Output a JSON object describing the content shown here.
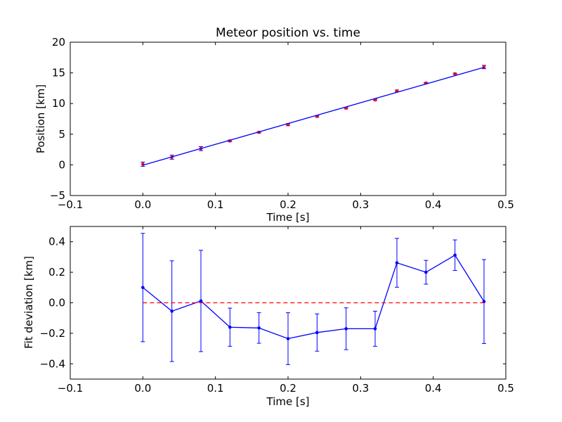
{
  "chart_data": [
    {
      "type": "scatter",
      "title": "Meteor position vs. time",
      "xlabel": "Time [s]",
      "ylabel": "Position [km]",
      "xlim": [
        -0.1,
        0.5
      ],
      "ylim": [
        -5,
        20
      ],
      "xticks": [
        "−0.1",
        "0.0",
        "0.1",
        "0.2",
        "0.3",
        "0.4",
        "0.5"
      ],
      "xtick_values": [
        -0.1,
        0.0,
        0.1,
        0.2,
        0.3,
        0.4,
        0.5
      ],
      "yticks": [
        "−5",
        "0",
        "5",
        "10",
        "15",
        "20"
      ],
      "ytick_values": [
        -5,
        0,
        5,
        10,
        15,
        20
      ],
      "grid": false,
      "legend": "none",
      "series": [
        {
          "kind": "points-with-errorbars",
          "color": "#ff0000",
          "errorbar_color": "#0000ff",
          "x": [
            0.0,
            0.04,
            0.08,
            0.12,
            0.16,
            0.2,
            0.24,
            0.28,
            0.32,
            0.35,
            0.39,
            0.43,
            0.47
          ],
          "y": [
            0.1,
            1.25,
            2.65,
            3.9,
            5.3,
            6.55,
            7.9,
            9.25,
            10.6,
            12.05,
            13.35,
            14.85,
            15.95
          ],
          "yerr": [
            0.35,
            0.33,
            0.33,
            0.13,
            0.1,
            0.17,
            0.12,
            0.14,
            0.12,
            0.16,
            0.08,
            0.1,
            0.28
          ]
        },
        {
          "kind": "fit-line",
          "color": "#0000ff",
          "x": [
            0.0,
            0.47
          ],
          "y": [
            -0.05,
            15.9
          ]
        }
      ]
    },
    {
      "type": "line",
      "xlabel": "Time [s]",
      "ylabel": "Fit deviation [km]",
      "xlim": [
        -0.1,
        0.5
      ],
      "ylim": [
        -0.5,
        0.5
      ],
      "xticks": [
        "−0.1",
        "0.0",
        "0.1",
        "0.2",
        "0.3",
        "0.4",
        "0.5"
      ],
      "xtick_values": [
        -0.1,
        0.0,
        0.1,
        0.2,
        0.3,
        0.4,
        0.5
      ],
      "yticks": [
        "−0.4",
        "−0.2",
        "0.0",
        "0.2",
        "0.4"
      ],
      "ytick_values": [
        -0.4,
        -0.2,
        0.0,
        0.2,
        0.4
      ],
      "grid": false,
      "legend": "none",
      "series": [
        {
          "kind": "line-with-errorbars",
          "color": "#0000ff",
          "x": [
            0.0,
            0.04,
            0.08,
            0.12,
            0.16,
            0.2,
            0.24,
            0.28,
            0.32,
            0.35,
            0.39,
            0.43,
            0.47
          ],
          "y": [
            0.1,
            -0.055,
            0.012,
            -0.16,
            -0.165,
            -0.235,
            -0.195,
            -0.17,
            -0.17,
            0.262,
            0.2,
            0.312,
            0.008
          ],
          "yerr": [
            0.355,
            0.33,
            0.332,
            0.125,
            0.1,
            0.17,
            0.122,
            0.137,
            0.115,
            0.16,
            0.078,
            0.1,
            0.275
          ]
        },
        {
          "kind": "reference-line",
          "color": "#ff0000",
          "style": "dashed",
          "x": [
            0.0,
            0.47
          ],
          "y": [
            0.0,
            0.0
          ]
        }
      ]
    }
  ]
}
